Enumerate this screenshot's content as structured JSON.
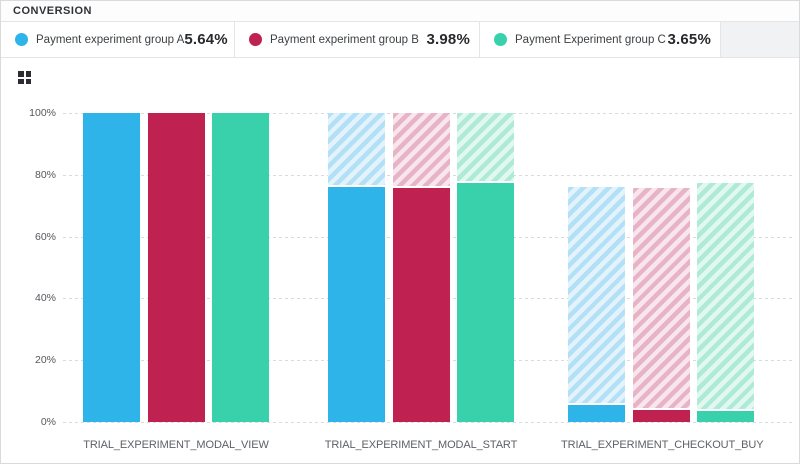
{
  "header": {
    "title": "CONVERSION"
  },
  "legend": {
    "items": [
      {
        "label": "Payment experiment group A",
        "value": "5.64%",
        "color": "#2fb4e9"
      },
      {
        "label": "Payment experiment group B",
        "value": "3.98%",
        "color": "#bf2251"
      },
      {
        "label": "Payment Experiment group C",
        "value": "3.65%",
        "color": "#39d1ac"
      }
    ]
  },
  "icons": {
    "chart_type_icon": "grid-2x2"
  },
  "chart_data": {
    "type": "bar",
    "subtype": "funnel-with-dropoff-hatch",
    "title": "CONVERSION",
    "categories": [
      "TRIAL_EXPERIMENT_MODAL_VIEW",
      "TRIAL_EXPERIMENT_MODAL_START",
      "TRIAL_EXPERIMENT_CHECKOUT_BUY"
    ],
    "series": [
      {
        "name": "Payment experiment group A",
        "color": "#2fb4e9",
        "hatch_bg": "#e2f3fc",
        "hatch_stripe": "#b3e0f6",
        "values": [
          100,
          76.1,
          5.64
        ]
      },
      {
        "name": "Payment experiment group B",
        "color": "#bf2251",
        "hatch_bg": "#f8e6ec",
        "hatch_stripe": "#e7b3c6",
        "values": [
          100,
          75.7,
          3.98
        ]
      },
      {
        "name": "Payment Experiment group C",
        "color": "#39d1ac",
        "hatch_bg": "#e0f8f0",
        "hatch_stripe": "#aeead6",
        "values": [
          100,
          77.3,
          3.65
        ]
      }
    ],
    "hatch_meaning": "hatched area spans from previous step value down to current step value (drop-off)",
    "y_ticks": [
      {
        "value": 0,
        "label": "0%"
      },
      {
        "value": 20,
        "label": "20%"
      },
      {
        "value": 40,
        "label": "40%"
      },
      {
        "value": 60,
        "label": "60%"
      },
      {
        "value": 80,
        "label": "80%"
      },
      {
        "value": 100,
        "label": "100%"
      }
    ],
    "ylim": [
      0,
      100
    ],
    "grid": "horizontal-dashed",
    "legend_position": "top"
  }
}
